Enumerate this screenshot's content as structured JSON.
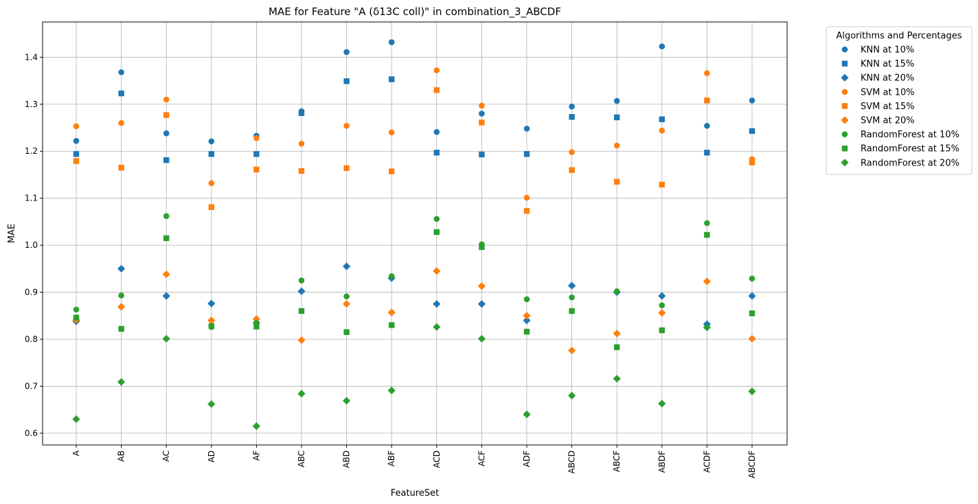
{
  "chart_data": {
    "type": "scatter",
    "title": "MAE for Feature \"A (δ13C coll)\" in combination_3_ABCDF",
    "xlabel": "FeatureSet",
    "ylabel": "MAE",
    "categories": [
      "A",
      "AB",
      "AC",
      "AD",
      "AF",
      "ABC",
      "ABD",
      "ABF",
      "ACD",
      "ACF",
      "ADF",
      "ABCD",
      "ABCF",
      "ABDF",
      "ACDF",
      "ABCDF"
    ],
    "ylim": [
      0.575,
      1.475
    ],
    "yticks": [
      "0.6",
      "0.7",
      "0.8",
      "0.9",
      "1.0",
      "1.1",
      "1.2",
      "1.3",
      "1.4"
    ],
    "grid": true,
    "legend_title": "Algorithms and Percentages",
    "legend_position": "outside-right",
    "series": [
      {
        "name": "KNN at 10%",
        "color": "#1f77b4",
        "marker": "circle",
        "values": [
          1.222,
          1.368,
          1.238,
          1.221,
          1.233,
          1.285,
          1.411,
          1.432,
          1.241,
          1.28,
          1.248,
          1.295,
          1.307,
          1.423,
          1.254,
          1.308
        ]
      },
      {
        "name": "KNN at 15%",
        "color": "#1f77b4",
        "marker": "square",
        "values": [
          1.194,
          1.323,
          1.181,
          1.194,
          1.194,
          1.281,
          1.349,
          1.353,
          1.197,
          1.193,
          1.194,
          1.273,
          1.272,
          1.268,
          1.197,
          1.243
        ]
      },
      {
        "name": "KNN at 20%",
        "color": "#1f77b4",
        "marker": "diamond",
        "values": [
          0.838,
          0.95,
          0.892,
          0.876,
          0.835,
          0.902,
          0.955,
          0.93,
          0.875,
          0.875,
          0.84,
          0.914,
          0.9,
          0.892,
          0.832,
          0.892
        ]
      },
      {
        "name": "SVM at 10%",
        "color": "#ff7f0e",
        "marker": "circle",
        "values": [
          1.253,
          1.26,
          1.31,
          1.132,
          1.228,
          1.216,
          1.254,
          1.24,
          1.372,
          1.297,
          1.101,
          1.198,
          1.212,
          1.244,
          1.366,
          1.183
        ]
      },
      {
        "name": "SVM at 15%",
        "color": "#ff7f0e",
        "marker": "square",
        "values": [
          1.179,
          1.165,
          1.277,
          1.081,
          1.161,
          1.158,
          1.164,
          1.157,
          1.33,
          1.261,
          1.073,
          1.16,
          1.135,
          1.129,
          1.308,
          1.176
        ]
      },
      {
        "name": "SVM at 20%",
        "color": "#ff7f0e",
        "marker": "diamond",
        "values": [
          0.841,
          0.869,
          0.938,
          0.84,
          0.843,
          0.798,
          0.875,
          0.857,
          0.945,
          0.913,
          0.85,
          0.776,
          0.812,
          0.856,
          0.923,
          0.801
        ]
      },
      {
        "name": "RandomForest at 10%",
        "color": "#2ca02c",
        "marker": "circle",
        "values": [
          0.863,
          0.893,
          1.062,
          0.826,
          0.835,
          0.925,
          0.891,
          0.934,
          1.056,
          1.002,
          0.885,
          0.889,
          0.902,
          0.872,
          1.047,
          0.929
        ]
      },
      {
        "name": "RandomForest at 15%",
        "color": "#2ca02c",
        "marker": "square",
        "values": [
          0.846,
          0.822,
          1.015,
          0.828,
          0.827,
          0.86,
          0.815,
          0.83,
          1.028,
          0.996,
          0.816,
          0.86,
          0.783,
          0.819,
          1.022,
          0.855
        ]
      },
      {
        "name": "RandomForest at 20%",
        "color": "#2ca02c",
        "marker": "diamond",
        "values": [
          0.63,
          0.709,
          0.801,
          0.662,
          0.615,
          0.684,
          0.669,
          0.691,
          0.826,
          0.801,
          0.64,
          0.68,
          0.716,
          0.663,
          0.825,
          0.689
        ]
      }
    ]
  }
}
